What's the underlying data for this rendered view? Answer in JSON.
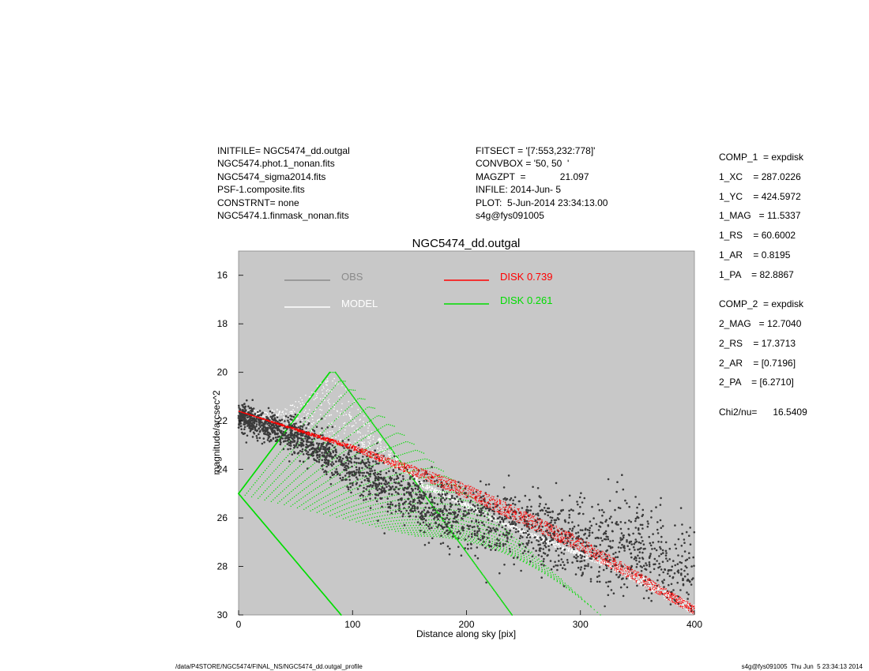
{
  "header_left": [
    "INITFILE= NGC5474_dd.outgal",
    "NGC5474.phot.1_nonan.fits",
    "NGC5474_sigma2014.fits",
    "PSF-1.composite.fits",
    "CONSTRNT= none",
    "NGC5474.1.finmask_nonan.fits"
  ],
  "header_mid": [
    "FITSECT = '[7:553,232:778]'",
    "CONVBOX = '50, 50  '",
    "MAGZPT  =             21.097",
    "INFILE: 2014-Jun- 5",
    "PLOT:  5-Jun-2014 23:34:13.00",
    "s4g@fys091005"
  ],
  "params": [
    "COMP_1  = expdisk",
    "1_XC    = 287.0226",
    "1_YC    = 424.5972",
    "1_MAG   = 11.5337",
    "1_RS    = 60.6002",
    "1_AR    = 0.8195",
    "1_PA    = 82.8867",
    "COMP_2  = expdisk",
    "2_MAG   = 12.7040",
    "2_RS    = 17.3713",
    "2_AR    = [0.7196]",
    "2_PA    = [6.2710]",
    "Chi2/nu=      16.5409"
  ],
  "footer": {
    "left": "/data/P4STORE/NGC5474/FINAL_NS/NGC5474_dd.outgal_profile",
    "right": "s4g@fys091005  Thu Jun  5 23:34:13 2014"
  },
  "colors": {
    "plot_bg": "#c8c8c8",
    "obs": "#3a3a3a",
    "model": "#ffffff",
    "disk1": "#ff0000",
    "disk2": "#00dd00",
    "obs_legend": "#8a8a8a"
  },
  "chart_data": {
    "type": "scatter",
    "title": "NGC5474_dd.outgal",
    "xlabel": "Distance along sky [pix]",
    "ylabel": "magnitude/arcsec^2",
    "xlim": [
      0,
      400
    ],
    "ylim": [
      30,
      15
    ],
    "y_inverted": true,
    "xticks": [
      0,
      100,
      200,
      300,
      400
    ],
    "yticks": [
      16,
      18,
      20,
      22,
      24,
      26,
      28,
      30
    ],
    "grid": false,
    "legend": [
      {
        "label": "OBS",
        "color": "#8a8a8a"
      },
      {
        "label": "MODEL",
        "color": "#ffffff"
      },
      {
        "label": "DISK  0.739",
        "color": "#ff0000"
      },
      {
        "label": "DISK  0.261",
        "color": "#00dd00"
      }
    ],
    "series": [
      {
        "name": "DISK  0.739",
        "band_upper": {
          "x": [
            0,
            100,
            200,
            300,
            400
          ],
          "y": [
            21.6,
            23.0,
            24.6,
            26.8,
            29.6
          ]
        },
        "band_lower": {
          "x": [
            0,
            100,
            200,
            300,
            400
          ],
          "y": [
            21.6,
            23.2,
            25.2,
            27.4,
            30.0
          ]
        }
      },
      {
        "name": "DISK  0.261",
        "outline": {
          "x": [
            0,
            80,
            85,
            240,
            90,
            80,
            0
          ],
          "y": [
            25.0,
            20.0,
            20.0,
            30.0,
            30.0,
            30.0,
            25.0
          ]
        }
      },
      {
        "name": "MODEL",
        "upper_edge": {
          "x": [
            0,
            40,
            85,
            120,
            160,
            250,
            350,
            400
          ],
          "y": [
            21.6,
            21.5,
            20.0,
            22.5,
            24.5,
            26.5,
            28.3,
            29.6
          ]
        }
      },
      {
        "name": "OBS",
        "center": {
          "x": [
            0,
            50,
            100,
            150,
            200,
            250,
            300,
            350,
            400
          ],
          "y": [
            21.8,
            22.6,
            24.0,
            25.2,
            26.0,
            26.4,
            27.0,
            27.3,
            28.5
          ]
        },
        "spread": 1.3
      }
    ]
  }
}
